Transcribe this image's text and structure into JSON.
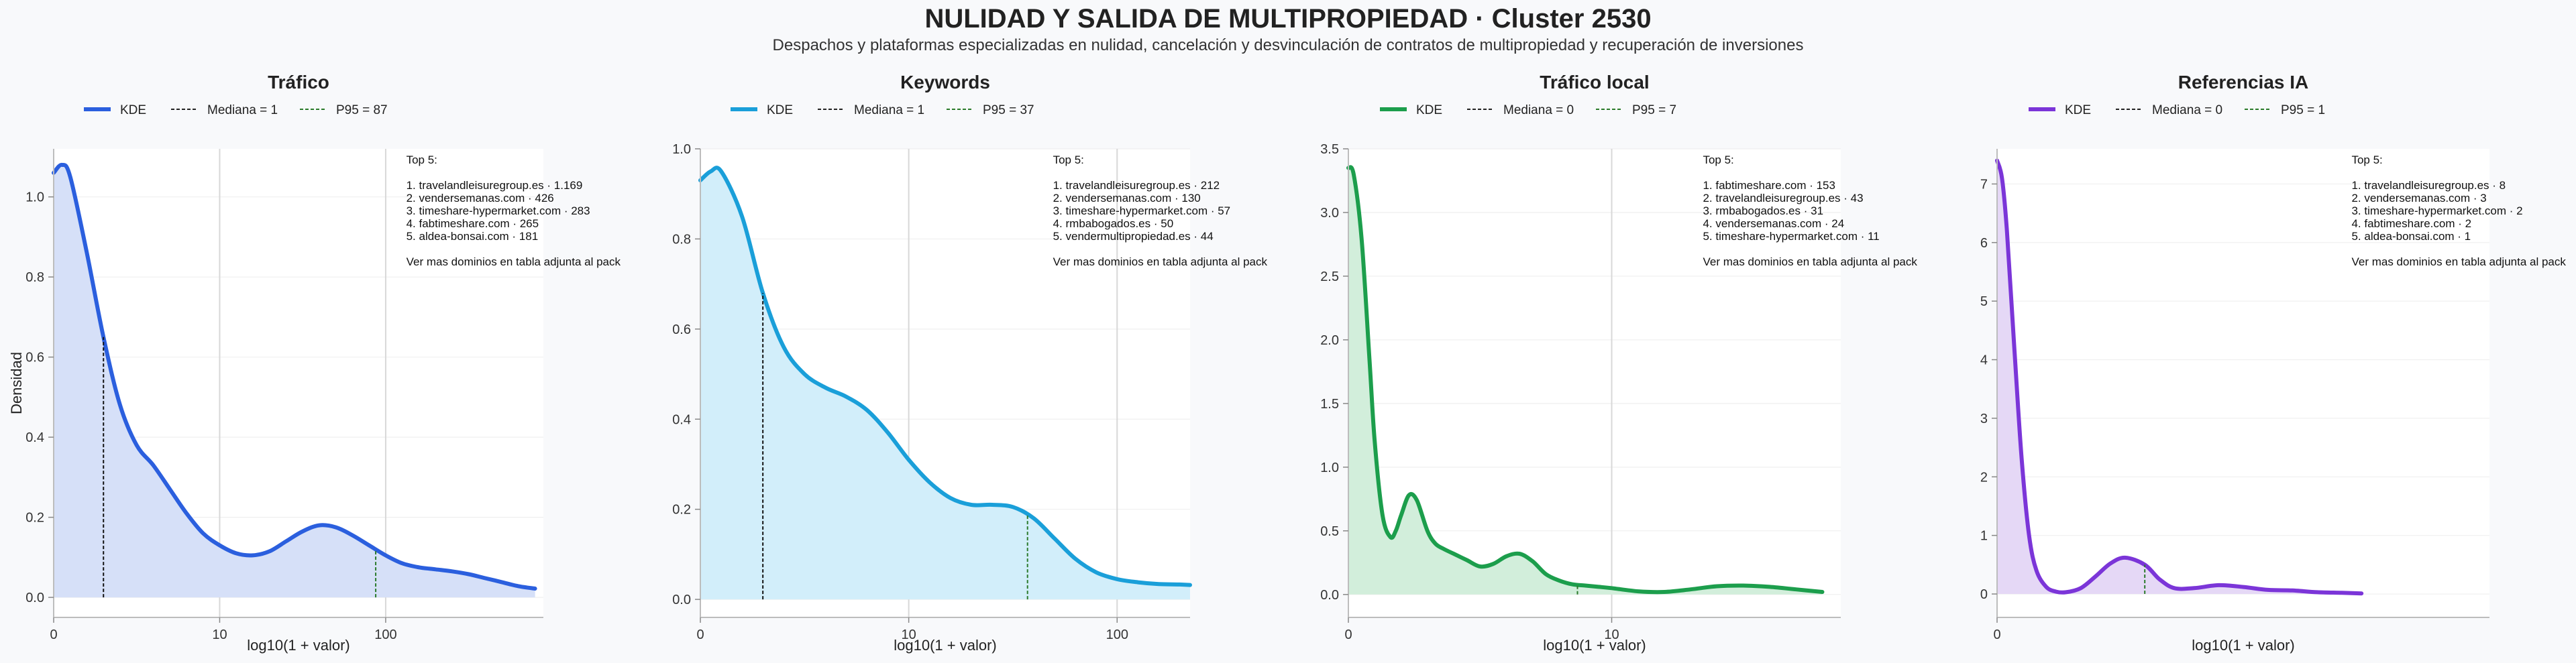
{
  "figure": {
    "title": "NULIDAD Y SALIDA DE MULTIPROPIEDAD · Cluster 2530",
    "subtitle": "Despachos y plataformas especializadas en nulidad, cancelación y desvinculación de contratos de multipropiedad y recuperación de inversiones"
  },
  "chart_data": [
    {
      "type": "area",
      "title": "Tráfico",
      "xlabel": "log10(1 + valor)",
      "ylabel": "Densidad",
      "color": "#2b5fde",
      "fill": "#d6e0f8",
      "legend": {
        "kde": "KDE",
        "median": "Mediana = 1",
        "p95": "P95 = 87"
      },
      "x_scale": "log10(1+x)",
      "xlim": [
        0,
        2.95
      ],
      "ylim": [
        -0.05,
        1.12
      ],
      "xticks": [
        0,
        1,
        2
      ],
      "xtick_labels": [
        "0",
        "10",
        "100"
      ],
      "yticks": [
        0,
        0.2,
        0.4,
        0.6,
        0.8,
        1.0
      ],
      "ytick_labels": [
        "0.0",
        "0.2",
        "0.4",
        "0.6",
        "0.8",
        "1.0"
      ],
      "median_x": 0.3,
      "p95_x": 1.94,
      "kde": {
        "x": [
          0,
          0.05,
          0.1,
          0.2,
          0.3,
          0.4,
          0.5,
          0.6,
          0.7,
          0.8,
          0.9,
          1.0,
          1.1,
          1.2,
          1.3,
          1.4,
          1.5,
          1.6,
          1.7,
          1.8,
          1.9,
          2.0,
          2.1,
          2.2,
          2.3,
          2.4,
          2.5,
          2.6,
          2.7,
          2.8,
          2.9
        ],
        "y": [
          1.06,
          1.08,
          1.05,
          0.86,
          0.65,
          0.48,
          0.38,
          0.33,
          0.27,
          0.21,
          0.16,
          0.13,
          0.11,
          0.105,
          0.115,
          0.14,
          0.165,
          0.18,
          0.175,
          0.155,
          0.13,
          0.105,
          0.085,
          0.075,
          0.07,
          0.065,
          0.058,
          0.048,
          0.038,
          0.028,
          0.022
        ]
      },
      "top5": {
        "heading": "Top 5:",
        "items": [
          "1. travelandleisuregroup.es · 1.169",
          "2. vendersemanas.com · 426",
          "3. timeshare-hypermarket.com · 283",
          "4. fabtimeshare.com · 265",
          "5. aldea-bonsai.com · 181"
        ],
        "footer": "Ver mas dominios en tabla adjunta al pack"
      }
    },
    {
      "type": "area",
      "title": "Keywords",
      "xlabel": "log10(1 + valor)",
      "ylabel": "",
      "color": "#1a9fd9",
      "fill": "#d2eefa",
      "legend": {
        "kde": "KDE",
        "median": "Mediana = 1",
        "p95": "P95 = 37"
      },
      "x_scale": "log10(1+x)",
      "xlim": [
        0,
        2.35
      ],
      "ylim": [
        -0.04,
        1.0
      ],
      "xticks": [
        0,
        1,
        2
      ],
      "xtick_labels": [
        "0",
        "10",
        "100"
      ],
      "yticks": [
        0,
        0.2,
        0.4,
        0.6,
        0.8,
        1.0
      ],
      "ytick_labels": [
        "0.0",
        "0.2",
        "0.4",
        "0.6",
        "0.8",
        "1.0"
      ],
      "median_x": 0.3,
      "p95_x": 1.57,
      "kde": {
        "x": [
          0,
          0.05,
          0.1,
          0.2,
          0.3,
          0.4,
          0.5,
          0.6,
          0.7,
          0.8,
          0.9,
          1.0,
          1.1,
          1.2,
          1.3,
          1.4,
          1.5,
          1.6,
          1.7,
          1.8,
          1.9,
          2.0,
          2.1,
          2.2,
          2.3,
          2.35
        ],
        "y": [
          0.93,
          0.95,
          0.95,
          0.85,
          0.68,
          0.56,
          0.5,
          0.47,
          0.45,
          0.42,
          0.37,
          0.31,
          0.26,
          0.225,
          0.21,
          0.21,
          0.205,
          0.18,
          0.135,
          0.09,
          0.06,
          0.045,
          0.038,
          0.034,
          0.033,
          0.032
        ]
      },
      "top5": {
        "heading": "Top 5:",
        "items": [
          "1. travelandleisuregroup.es · 212",
          "2. vendersemanas.com · 130",
          "3. timeshare-hypermarket.com · 57",
          "4. rmbabogados.es · 50",
          "5. vendermultipropiedad.es · 44"
        ],
        "footer": "Ver mas dominios en tabla adjunta al pack"
      }
    },
    {
      "type": "area",
      "title": "Tráfico local",
      "xlabel": "log10(1 + valor)",
      "ylabel": "",
      "color": "#1c9e4c",
      "fill": "#d2eedb",
      "legend": {
        "kde": "KDE",
        "median": "Mediana = 0",
        "p95": "P95 = 7"
      },
      "x_scale": "log10(1+x)",
      "xlim": [
        0,
        1.87
      ],
      "ylim": [
        -0.18,
        3.5
      ],
      "xticks": [
        0,
        1
      ],
      "xtick_labels": [
        "0",
        "10"
      ],
      "yticks": [
        0,
        0.5,
        1.0,
        1.5,
        2.0,
        2.5,
        3.0,
        3.5
      ],
      "ytick_labels": [
        "0.0",
        "0.5",
        "1.0",
        "1.5",
        "2.0",
        "2.5",
        "3.0",
        "3.5"
      ],
      "median_x": 0,
      "p95_x": 0.87,
      "kde": {
        "x": [
          0,
          0.02,
          0.05,
          0.08,
          0.1,
          0.13,
          0.16,
          0.18,
          0.2,
          0.23,
          0.26,
          0.3,
          0.33,
          0.36,
          0.4,
          0.45,
          0.5,
          0.55,
          0.6,
          0.65,
          0.7,
          0.75,
          0.8,
          0.85,
          0.9,
          0.95,
          1.0,
          1.1,
          1.2,
          1.3,
          1.4,
          1.5,
          1.6,
          1.7,
          1.8
        ],
        "y": [
          3.35,
          3.3,
          2.8,
          1.85,
          1.2,
          0.62,
          0.45,
          0.5,
          0.62,
          0.78,
          0.74,
          0.5,
          0.4,
          0.36,
          0.32,
          0.27,
          0.22,
          0.24,
          0.3,
          0.32,
          0.26,
          0.16,
          0.11,
          0.08,
          0.07,
          0.06,
          0.05,
          0.025,
          0.02,
          0.04,
          0.065,
          0.07,
          0.06,
          0.04,
          0.02
        ]
      },
      "top5": {
        "heading": "Top 5:",
        "items": [
          "1. fabtimeshare.com · 153",
          "2. travelandleisuregroup.es · 43",
          "3. rmbabogados.es · 31",
          "4. vendersemanas.com · 24",
          "5. timeshare-hypermarket.com · 11"
        ],
        "footer": "Ver mas dominios en tabla adjunta al pack"
      }
    },
    {
      "type": "area",
      "title": "Referencias IA",
      "xlabel": "log10(1 + valor)",
      "ylabel": "",
      "color": "#7b35d8",
      "fill": "#e5d8f6",
      "legend": {
        "kde": "KDE",
        "median": "Mediana = 0",
        "p95": "P95 = 1"
      },
      "x_scale": "log10(1+x)",
      "xlim": [
        0,
        1.0
      ],
      "ylim": [
        -0.4,
        7.6
      ],
      "xticks": [
        0
      ],
      "xtick_labels": [
        "0"
      ],
      "yticks": [
        0,
        1,
        2,
        3,
        4,
        5,
        6,
        7
      ],
      "ytick_labels": [
        "0",
        "1",
        "2",
        "3",
        "4",
        "5",
        "6",
        "7"
      ],
      "median_x": 0,
      "p95_x": 0.3,
      "kde": {
        "x": [
          0,
          0.01,
          0.02,
          0.035,
          0.05,
          0.065,
          0.08,
          0.1,
          0.12,
          0.14,
          0.17,
          0.2,
          0.23,
          0.26,
          0.3,
          0.33,
          0.36,
          0.4,
          0.45,
          0.5,
          0.55,
          0.6,
          0.65,
          0.7,
          0.74
        ],
        "y": [
          7.4,
          7.1,
          6.2,
          4.2,
          2.3,
          1.0,
          0.4,
          0.12,
          0.04,
          0.03,
          0.1,
          0.3,
          0.52,
          0.62,
          0.5,
          0.25,
          0.1,
          0.1,
          0.15,
          0.12,
          0.07,
          0.06,
          0.03,
          0.02,
          0.01
        ]
      },
      "top5": {
        "heading": "Top 5:",
        "items": [
          "1. travelandleisuregroup.es · 8",
          "2. vendersemanas.com · 3",
          "3. timeshare-hypermarket.com · 2",
          "4. fabtimeshare.com · 2",
          "5. aldea-bonsai.com · 1"
        ],
        "footer": "Ver mas dominios en tabla adjunta al pack"
      }
    }
  ]
}
